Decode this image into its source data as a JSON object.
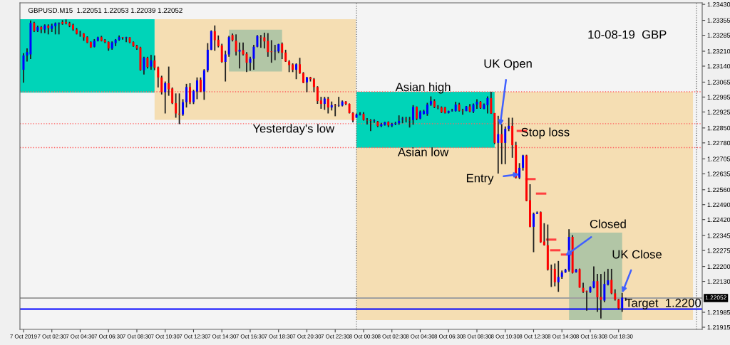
{
  "chart_data": {
    "type": "candlestick",
    "title": "GBPUSD.M15  1.22051 1.22053 1.22039 1.22052",
    "x": [
      "2019-10-07T00:30",
      "2019-10-07T00:45",
      "2019-10-07T01:00",
      "2019-10-07T01:15",
      "2019-10-07T01:30",
      "2019-10-07T01:45",
      "2019-10-07T02:00",
      "2019-10-07T02:15",
      "2019-10-07T02:30",
      "2019-10-07T02:45",
      "2019-10-07T03:00",
      "2019-10-07T03:15",
      "2019-10-07T03:30",
      "2019-10-07T03:45",
      "2019-10-07T04:00",
      "2019-10-07T04:15",
      "2019-10-07T04:30",
      "2019-10-07T04:45",
      "2019-10-07T05:00",
      "2019-10-07T05:15",
      "2019-10-07T05:30",
      "2019-10-07T05:45",
      "2019-10-07T06:00",
      "2019-10-07T06:15",
      "2019-10-07T06:30",
      "2019-10-07T06:45",
      "2019-10-07T07:00",
      "2019-10-07T07:15",
      "2019-10-07T07:30",
      "2019-10-07T07:45",
      "2019-10-07T08:00",
      "2019-10-07T08:15",
      "2019-10-07T08:30",
      "2019-10-07T08:45",
      "2019-10-07T09:00",
      "2019-10-07T09:15",
      "2019-10-07T09:30",
      "2019-10-07T09:45",
      "2019-10-07T10:00",
      "2019-10-07T10:15",
      "2019-10-07T10:30",
      "2019-10-07T10:45",
      "2019-10-07T11:00",
      "2019-10-07T11:15",
      "2019-10-07T11:30",
      "2019-10-07T11:45",
      "2019-10-07T12:00",
      "2019-10-07T12:15",
      "2019-10-07T12:30",
      "2019-10-07T12:45",
      "2019-10-07T13:00",
      "2019-10-07T13:15",
      "2019-10-07T13:30",
      "2019-10-07T13:45",
      "2019-10-07T14:00",
      "2019-10-07T14:15",
      "2019-10-07T14:30",
      "2019-10-07T14:45",
      "2019-10-07T15:00",
      "2019-10-07T15:15",
      "2019-10-07T15:30",
      "2019-10-07T15:45",
      "2019-10-07T16:00",
      "2019-10-07T16:15",
      "2019-10-07T16:30",
      "2019-10-07T16:45",
      "2019-10-07T17:00",
      "2019-10-07T17:15",
      "2019-10-07T17:30",
      "2019-10-07T17:45",
      "2019-10-07T18:00",
      "2019-10-07T18:15",
      "2019-10-07T18:30",
      "2019-10-07T18:45",
      "2019-10-07T19:00",
      "2019-10-07T19:15",
      "2019-10-07T19:30",
      "2019-10-07T19:45",
      "2019-10-07T20:00",
      "2019-10-07T20:15",
      "2019-10-07T20:30",
      "2019-10-07T20:45",
      "2019-10-07T21:00",
      "2019-10-07T21:15",
      "2019-10-07T21:30",
      "2019-10-07T21:45",
      "2019-10-07T22:00",
      "2019-10-07T22:15",
      "2019-10-07T22:30",
      "2019-10-07T22:45",
      "2019-10-07T23:00",
      "2019-10-07T23:15",
      "2019-10-07T23:30",
      "2019-10-07T23:45",
      "2019-10-08T00:00",
      "2019-10-08T00:15",
      "2019-10-08T00:30",
      "2019-10-08T00:45",
      "2019-10-08T01:00",
      "2019-10-08T01:15",
      "2019-10-08T01:30",
      "2019-10-08T01:45",
      "2019-10-08T02:00",
      "2019-10-08T02:15",
      "2019-10-08T02:30",
      "2019-10-08T02:45",
      "2019-10-08T03:00",
      "2019-10-08T03:15",
      "2019-10-08T03:30",
      "2019-10-08T03:45",
      "2019-10-08T04:00",
      "2019-10-08T04:15",
      "2019-10-08T04:30",
      "2019-10-08T04:45",
      "2019-10-08T05:00",
      "2019-10-08T05:15",
      "2019-10-08T05:30",
      "2019-10-08T05:45",
      "2019-10-08T06:00",
      "2019-10-08T06:15",
      "2019-10-08T06:30",
      "2019-10-08T06:45",
      "2019-10-08T07:00",
      "2019-10-08T07:15",
      "2019-10-08T07:30",
      "2019-10-08T07:45",
      "2019-10-08T08:00",
      "2019-10-08T08:15",
      "2019-10-08T08:30",
      "2019-10-08T08:45",
      "2019-10-08T09:00",
      "2019-10-08T09:15",
      "2019-10-08T09:30",
      "2019-10-08T09:45",
      "2019-10-08T10:00",
      "2019-10-08T10:15",
      "2019-10-08T10:30",
      "2019-10-08T10:45",
      "2019-10-08T11:00",
      "2019-10-08T11:15",
      "2019-10-08T11:30",
      "2019-10-08T11:45",
      "2019-10-08T12:00",
      "2019-10-08T12:15",
      "2019-10-08T12:30",
      "2019-10-08T12:45",
      "2019-10-08T13:00",
      "2019-10-08T13:15",
      "2019-10-08T13:30",
      "2019-10-08T13:45",
      "2019-10-08T14:00",
      "2019-10-08T14:15",
      "2019-10-08T14:30",
      "2019-10-08T14:45",
      "2019-10-08T15:00",
      "2019-10-08T15:15",
      "2019-10-08T15:30",
      "2019-10-08T15:45",
      "2019-10-08T16:00",
      "2019-10-08T16:15",
      "2019-10-08T16:30",
      "2019-10-08T16:45",
      "2019-10-08T17:00",
      "2019-10-08T17:15",
      "2019-10-08T17:30",
      "2019-10-08T17:45",
      "2019-10-08T18:00",
      "2019-10-08T18:15",
      "2019-10-08T18:30",
      "2019-10-08T18:45",
      "2019-10-08T19:00"
    ],
    "ohlc": [
      [
        1.23123,
        1.23201,
        1.23062,
        1.2319
      ],
      [
        1.2319,
        1.23223,
        1.23162,
        1.23206
      ],
      [
        1.23195,
        1.23354,
        1.23173,
        1.23343
      ],
      [
        1.23343,
        1.23348,
        1.233,
        1.23306
      ],
      [
        1.23306,
        1.2333,
        1.233,
        1.23323
      ],
      [
        1.23323,
        1.23328,
        1.23295,
        1.23312
      ],
      [
        1.23312,
        1.23336,
        1.23295,
        1.23331
      ],
      [
        1.2333,
        1.23336,
        1.23289,
        1.23319
      ],
      [
        1.23315,
        1.23339,
        1.233,
        1.2333
      ],
      [
        1.23328,
        1.23345,
        1.23289,
        1.23341
      ],
      [
        1.23341,
        1.23345,
        1.23289,
        1.23341
      ],
      [
        1.23347,
        1.23356,
        1.23334,
        1.23339
      ],
      [
        1.23347,
        1.23359,
        1.23336,
        1.23341
      ],
      [
        1.23341,
        1.23348,
        1.23323,
        1.2333
      ],
      [
        1.23334,
        1.23339,
        1.23306,
        1.23312
      ],
      [
        1.23312,
        1.23319,
        1.23289,
        1.23292
      ],
      [
        1.23292,
        1.23306,
        1.23278,
        1.23291
      ],
      [
        1.23293,
        1.23295,
        1.23259,
        1.23275
      ],
      [
        1.23276,
        1.2328,
        1.23248,
        1.23251
      ],
      [
        1.23253,
        1.23256,
        1.23226,
        1.23228
      ],
      [
        1.23231,
        1.23267,
        1.23228,
        1.23259
      ],
      [
        1.23259,
        1.23278,
        1.23256,
        1.23275
      ],
      [
        1.23276,
        1.23282,
        1.23256,
        1.23259
      ],
      [
        1.23262,
        1.23267,
        1.23248,
        1.23253
      ],
      [
        1.23254,
        1.23256,
        1.23212,
        1.23223
      ],
      [
        1.23223,
        1.23256,
        1.23217,
        1.23251
      ],
      [
        1.23248,
        1.23267,
        1.23234,
        1.23264
      ],
      [
        1.23264,
        1.23284,
        1.23259,
        1.23276
      ],
      [
        1.23276,
        1.23276,
        1.23264,
        1.23273
      ],
      [
        1.23273,
        1.23278,
        1.23253,
        1.23276
      ],
      [
        1.23275,
        1.23276,
        1.23248,
        1.23251
      ],
      [
        1.23253,
        1.23256,
        1.23231,
        1.23234
      ],
      [
        1.23236,
        1.2324,
        1.23217,
        1.23223
      ],
      [
        1.23228,
        1.23231,
        1.23118,
        1.23121
      ],
      [
        1.23121,
        1.23184,
        1.23101,
        1.23179
      ],
      [
        1.23179,
        1.23184,
        1.23129,
        1.23136
      ],
      [
        1.23138,
        1.23193,
        1.23123,
        1.23167
      ],
      [
        1.23167,
        1.2319,
        1.23121,
        1.23132
      ],
      [
        1.23134,
        1.23138,
        1.2304,
        1.23087
      ],
      [
        1.23087,
        1.23095,
        1.23007,
        1.23018
      ],
      [
        1.23018,
        1.23068,
        1.22918,
        1.2306
      ],
      [
        1.2306,
        1.23138,
        1.23001,
        1.23031
      ],
      [
        1.23035,
        1.2304,
        1.22962,
        1.22966
      ],
      [
        1.22966,
        1.23012,
        1.22898,
        1.22918
      ],
      [
        1.22917,
        1.23012,
        1.22868,
        1.22913
      ],
      [
        1.22913,
        1.22985,
        1.22907,
        1.22971
      ],
      [
        1.22971,
        1.23057,
        1.22946,
        1.23042
      ],
      [
        1.23042,
        1.2306,
        1.22962,
        1.22971
      ],
      [
        1.22971,
        1.23029,
        1.22962,
        1.23023
      ],
      [
        1.23021,
        1.23087,
        1.22985,
        1.23073
      ],
      [
        1.23076,
        1.23087,
        1.23018,
        1.23021
      ],
      [
        1.23021,
        1.23126,
        1.22982,
        1.2312
      ],
      [
        1.2312,
        1.23248,
        1.23112,
        1.23217
      ],
      [
        1.23217,
        1.23308,
        1.23215,
        1.23304
      ],
      [
        1.23304,
        1.23331,
        1.23212,
        1.23262
      ],
      [
        1.23264,
        1.23284,
        1.23228,
        1.23234
      ],
      [
        1.23237,
        1.23245,
        1.23156,
        1.2316
      ],
      [
        1.2316,
        1.23212,
        1.23068,
        1.23195
      ],
      [
        1.23195,
        1.23282,
        1.23184,
        1.23276
      ],
      [
        1.23286,
        1.23293,
        1.23256,
        1.23262
      ],
      [
        1.23259,
        1.23289,
        1.2319,
        1.23208
      ],
      [
        1.23208,
        1.23251,
        1.23129,
        1.23217
      ],
      [
        1.23215,
        1.23251,
        1.2319,
        1.23195
      ],
      [
        1.23198,
        1.23206,
        1.23112,
        1.23156
      ],
      [
        1.23156,
        1.23184,
        1.23118,
        1.23175
      ],
      [
        1.23175,
        1.2324,
        1.23123,
        1.23231
      ],
      [
        1.23231,
        1.23286,
        1.23228,
        1.23282
      ],
      [
        1.23277,
        1.23286,
        1.23226,
        1.23275
      ],
      [
        1.23275,
        1.23297,
        1.23223,
        1.23256
      ],
      [
        1.23258,
        1.23295,
        1.23184,
        1.23206
      ],
      [
        1.23209,
        1.23262,
        1.23156,
        1.23206
      ],
      [
        1.23209,
        1.2324,
        1.23168,
        1.23212
      ],
      [
        1.23209,
        1.23245,
        1.23201,
        1.23243
      ],
      [
        1.23245,
        1.23251,
        1.23173,
        1.23203
      ],
      [
        1.23204,
        1.23217,
        1.2316,
        1.23162
      ],
      [
        1.23162,
        1.23168,
        1.23112,
        1.23145
      ],
      [
        1.23148,
        1.23153,
        1.23112,
        1.23123
      ],
      [
        1.23123,
        1.23153,
        1.23079,
        1.23149
      ],
      [
        1.23149,
        1.23179,
        1.23104,
        1.23107
      ],
      [
        1.23107,
        1.23112,
        1.2306,
        1.23062
      ],
      [
        1.23064,
        1.2309,
        1.23018,
        1.23087
      ],
      [
        1.23087,
        1.2309,
        1.23068,
        1.23079
      ],
      [
        1.23079,
        1.23084,
        1.23018,
        1.23042
      ],
      [
        1.23042,
        1.23046,
        1.22963,
        1.22976
      ],
      [
        1.22979,
        1.22996,
        1.2294,
        1.22963
      ],
      [
        1.22963,
        1.22996,
        1.22935,
        1.22988
      ],
      [
        1.22987,
        1.22996,
        1.22918,
        1.22946
      ],
      [
        1.22946,
        1.22974,
        1.22932,
        1.22957
      ],
      [
        1.22957,
        1.22963,
        1.22905,
        1.22955
      ],
      [
        1.22955,
        1.22996,
        1.22949,
        1.22957
      ],
      [
        1.22955,
        1.22979,
        1.22951,
        1.22974
      ],
      [
        1.22974,
        1.22976,
        1.22957,
        1.22963
      ],
      [
        1.22963,
        1.22965,
        1.22918,
        1.2292
      ],
      [
        1.2292,
        1.22924,
        1.22876,
        1.22885
      ],
      [
        1.22898,
        1.22918,
        1.22898,
        1.22913
      ],
      [
        1.22913,
        1.22924,
        1.22909,
        1.22916
      ],
      [
        1.22916,
        1.22924,
        1.22885,
        1.22887
      ],
      [
        1.22887,
        1.22896,
        1.22866,
        1.22885
      ],
      [
        1.22885,
        1.22891,
        1.22835,
        1.22883
      ],
      [
        1.22883,
        1.22891,
        1.22874,
        1.22885
      ],
      [
        1.22879,
        1.22883,
        1.22854,
        1.22859
      ],
      [
        1.22859,
        1.22874,
        1.22854,
        1.22867
      ],
      [
        1.22865,
        1.22879,
        1.22861,
        1.22876
      ],
      [
        1.22878,
        1.22881,
        1.22854,
        1.22862
      ],
      [
        1.22861,
        1.22874,
        1.22854,
        1.22869
      ],
      [
        1.22869,
        1.22879,
        1.22863,
        1.22872
      ],
      [
        1.22872,
        1.22909,
        1.22865,
        1.22883
      ],
      [
        1.22891,
        1.22902,
        1.22872,
        1.22894
      ],
      [
        1.22894,
        1.22902,
        1.22876,
        1.22891
      ],
      [
        1.22887,
        1.22902,
        1.22852,
        1.22885
      ],
      [
        1.22887,
        1.22957,
        1.22865,
        1.22949
      ],
      [
        1.22949,
        1.22951,
        1.22887,
        1.22894
      ],
      [
        1.22894,
        1.22932,
        1.22891,
        1.22927
      ],
      [
        1.22916,
        1.22935,
        1.22913,
        1.22929
      ],
      [
        1.22916,
        1.22968,
        1.22907,
        1.2296
      ],
      [
        1.2296,
        1.22998,
        1.22954,
        1.22976
      ],
      [
        1.22976,
        1.22985,
        1.22943,
        1.22949
      ],
      [
        1.22949,
        1.22957,
        1.22938,
        1.22946
      ],
      [
        1.22946,
        1.22951,
        1.2292,
        1.22924
      ],
      [
        1.22946,
        1.22949,
        1.22918,
        1.22921
      ],
      [
        1.22921,
        1.22931,
        1.22918,
        1.22929
      ],
      [
        1.22929,
        1.2294,
        1.22927,
        1.22931
      ],
      [
        1.22929,
        1.22973,
        1.22927,
        1.2296
      ],
      [
        1.2296,
        1.22968,
        1.22927,
        1.22931
      ],
      [
        1.22931,
        1.2294,
        1.22912,
        1.22929
      ],
      [
        1.22929,
        1.22953,
        1.22929,
        1.22951
      ],
      [
        1.22951,
        1.22962,
        1.22924,
        1.22927
      ],
      [
        1.22927,
        1.22965,
        1.2292,
        1.2296
      ],
      [
        1.2296,
        1.22985,
        1.2294,
        1.22973
      ],
      [
        1.22973,
        1.22976,
        1.2294,
        1.22944
      ],
      [
        1.2294,
        1.22965,
        1.22938,
        1.2296
      ],
      [
        1.22957,
        1.22998,
        1.22918,
        1.2299
      ],
      [
        1.2299,
        1.2302,
        1.22916,
        1.22918
      ],
      [
        1.2292,
        1.2292,
        1.22774,
        1.2278
      ],
      [
        1.2278,
        1.22907,
        1.22636,
        1.22821
      ],
      [
        1.22821,
        1.22868,
        1.2268,
        1.2278
      ],
      [
        1.2278,
        1.22857,
        1.2268,
        1.22846
      ],
      [
        1.22846,
        1.22898,
        1.22835,
        1.2286
      ],
      [
        1.2286,
        1.22898,
        1.2271,
        1.22769
      ],
      [
        1.22769,
        1.22785,
        1.22613,
        1.22617
      ],
      [
        1.22617,
        1.22685,
        1.2261,
        1.22663
      ],
      [
        1.22663,
        1.22724,
        1.2265,
        1.22721
      ],
      [
        1.22721,
        1.22724,
        1.22506,
        1.22508
      ],
      [
        1.22511,
        1.22586,
        1.22384,
        1.22386
      ],
      [
        1.22386,
        1.22453,
        1.22267,
        1.22447
      ],
      [
        1.22447,
        1.22458,
        1.22447,
        1.22453
      ],
      [
        1.22455,
        1.22458,
        1.22311,
        1.22314
      ],
      [
        1.22317,
        1.22403,
        1.22298,
        1.223
      ],
      [
        1.223,
        1.22397,
        1.22181,
        1.22185
      ],
      [
        1.22189,
        1.22209,
        1.22104,
        1.22187
      ],
      [
        1.22189,
        1.22214,
        1.22107,
        1.22126
      ],
      [
        1.22126,
        1.22226,
        1.22081,
        1.22151
      ],
      [
        1.22151,
        1.22181,
        1.22142,
        1.22172
      ],
      [
        1.22172,
        1.22189,
        1.2217,
        1.22185
      ],
      [
        1.22184,
        1.22375,
        1.22176,
        1.22339
      ],
      [
        1.22339,
        1.22347,
        1.22167,
        1.2217
      ],
      [
        1.22173,
        1.22189,
        1.22171,
        1.22185
      ],
      [
        1.22187,
        1.2219,
        1.221,
        1.22101
      ],
      [
        1.221,
        1.22124,
        1.22076,
        1.22081
      ],
      [
        1.22084,
        1.22087,
        1.21993,
        1.22081
      ],
      [
        1.22079,
        1.22107,
        1.22076,
        1.22104
      ],
      [
        1.22101,
        1.222,
        1.22098,
        1.22131
      ],
      [
        1.22131,
        1.22165,
        1.21987,
        1.22056
      ],
      [
        1.22057,
        1.22165,
        1.21956,
        1.22043
      ],
      [
        1.2204,
        1.22176,
        1.22032,
        1.22118
      ],
      [
        1.22115,
        1.22189,
        1.22111,
        1.22135
      ],
      [
        1.22137,
        1.22189,
        1.2207,
        1.22074
      ],
      [
        1.22074,
        1.22093,
        1.2204,
        1.22045
      ],
      [
        1.22045,
        1.22048,
        1.21998,
        1.22004
      ],
      [
        1.22004,
        1.22076,
        1.21987,
        1.22054
      ],
      [
        1.22051,
        1.22053,
        1.22039,
        1.22052
      ]
    ],
    "colors": [
      "#0000ff",
      "#0000ff",
      "#0000ff",
      "#ff0000",
      "#0000ff",
      "#ff0000",
      "#0000ff",
      "#ff0000",
      "#0000ff",
      "#0000ff",
      "#0000ff",
      "#ff0000",
      "#ff0000",
      "#ff0000",
      "#ff0000",
      "#ff0000",
      "#ff0000",
      "#ff0000",
      "#ff0000",
      "#ff0000",
      "#0000ff",
      "#0000ff",
      "#ff0000",
      "#ff0000",
      "#ff0000",
      "#0000ff",
      "#0000ff",
      "#0000ff",
      "#ff0000",
      "#0000ff",
      "#ff0000",
      "#ff0000",
      "#ff0000",
      "#ff0000",
      "#0000ff",
      "#ff0000",
      "#0000ff",
      "#ff0000",
      "#ff0000",
      "#ff0000",
      "#0000ff",
      "#ff0000",
      "#ff0000",
      "#ff0000",
      "#ff0000",
      "#0000ff",
      "#0000ff",
      "#ff0000",
      "#0000ff",
      "#0000ff",
      "#ff0000",
      "#0000ff",
      "#0000ff",
      "#0000ff",
      "#ff0000",
      "#ff0000",
      "#ff0000",
      "#0000ff",
      "#0000ff",
      "#ff0000",
      "#ff0000",
      "#0000ff",
      "#ff0000",
      "#ff0000",
      "#0000ff",
      "#0000ff",
      "#0000ff",
      "#ff0000",
      "#ff0000",
      "#ff0000",
      "#ff0000",
      "#0000ff",
      "#0000ff",
      "#ff0000",
      "#ff0000",
      "#ff0000",
      "#ff0000",
      "#0000ff",
      "#ff0000",
      "#ff0000",
      "#0000ff",
      "#ff0000",
      "#ff0000",
      "#ff0000",
      "#ff0000",
      "#0000ff",
      "#ff0000",
      "#0000ff",
      "#ff0000",
      "#0000ff",
      "#0000ff",
      "#ff0000",
      "#ff0000",
      "#ff0000",
      "#0000ff",
      "#0000ff",
      "#ff0000",
      "#ff0000",
      "#ff0000",
      "#0000ff",
      "#ff0000",
      "#0000ff",
      "#0000ff",
      "#ff0000",
      "#0000ff",
      "#0000ff",
      "#0000ff",
      "#0000ff",
      "#ff0000",
      "#ff0000",
      "#0000ff",
      "#ff0000",
      "#0000ff",
      "#0000ff",
      "#0000ff",
      "#0000ff",
      "#ff0000",
      "#ff0000",
      "#ff0000",
      "#ff0000",
      "#0000ff",
      "#0000ff",
      "#0000ff",
      "#ff0000",
      "#ff0000",
      "#0000ff",
      "#ff0000",
      "#0000ff",
      "#0000ff",
      "#ff0000",
      "#0000ff",
      "#0000ff",
      "#ff0000",
      "#ff0000",
      "#0000ff",
      "#ff0000",
      "#0000ff",
      "#0000ff",
      "#ff0000",
      "#ff0000",
      "#0000ff",
      "#0000ff",
      "#ff0000",
      "#ff0000",
      "#0000ff",
      "#0000ff",
      "#ff0000",
      "#ff0000",
      "#ff0000",
      "#ff0000",
      "#ff0000",
      "#0000ff",
      "#0000ff",
      "#0000ff",
      "#0000ff",
      "#ff0000",
      "#0000ff",
      "#ff0000",
      "#ff0000",
      "#ff0000",
      "#0000ff",
      "#0000ff",
      "#ff0000",
      "#ff0000",
      "#0000ff",
      "#0000ff",
      "#ff0000",
      "#ff0000",
      "#ff0000",
      "#0000ff",
      "#0000ff"
    ],
    "ref_lines": [
      {
        "axis": "y",
        "value": 1.2302,
        "color": "#ff6060",
        "line_style": "dotted"
      },
      {
        "axis": "y",
        "value": 1.2287,
        "color": "#ff6060",
        "line_style": "dotted"
      },
      {
        "axis": "y",
        "value": 1.22758,
        "color": "#ff6060",
        "line_style": "dotted"
      },
      {
        "axis": "y",
        "value": 1.22,
        "color": "#0000ff",
        "line_style": "solid"
      },
      {
        "axis": "y",
        "value": 1.22052,
        "label": "1.22052",
        "color": "#a0a0a0",
        "line_style": "solid"
      },
      {
        "axis": "x",
        "value": "2019-10-08",
        "color": "#606060",
        "line_style": "dotted"
      },
      {
        "axis": "x",
        "value": "2019-10-09",
        "color": "#606060",
        "line_style": "dotted"
      }
    ],
    "annotations": [
      "10-08-19  GBP",
      "Asian high",
      "Asian low",
      "Yesterday's low",
      "Stop loss",
      "Target  1.2200",
      {
        "text": "UK Open",
        "x": "2019-10-08T10:08",
        "y": 1.2286
      },
      {
        "text": "Entry",
        "x": "2019-10-08T11:30",
        "y": 1.22633
      },
      {
        "text": "Closed",
        "x": "2019-10-08T14:45",
        "y": 1.22251
      },
      {
        "text": "UK Close",
        "x": "2019-10-08T18:45",
        "y": 1.22076
      }
    ],
    "xlim": [
      "2019-10-07T00:15",
      "2019-10-09T00:24"
    ],
    "ylim": [
      1.21905,
      1.23437
    ],
    "xticks": [
      {
        "value": "2019-10-07T00:30",
        "label": "7 Oct 2019"
      },
      {
        "value": "2019-10-07T02:30",
        "label": "7 Oct 02:30"
      },
      {
        "value": "2019-10-07T04:30",
        "label": "7 Oct 04:30"
      },
      {
        "value": "2019-10-07T06:30",
        "label": "7 Oct 06:30"
      },
      {
        "value": "2019-10-07T08:30",
        "label": "7 Oct 08:30"
      },
      {
        "value": "2019-10-07T10:30",
        "label": "7 Oct 10:30"
      },
      {
        "value": "2019-10-07T12:30",
        "label": "7 Oct 12:30"
      },
      {
        "value": "2019-10-07T14:30",
        "label": "7 Oct 14:30"
      },
      {
        "value": "2019-10-07T16:30",
        "label": "7 Oct 16:30"
      },
      {
        "value": "2019-10-07T18:30",
        "label": "7 Oct 18:30"
      },
      {
        "value": "2019-10-07T20:30",
        "label": "7 Oct 20:30"
      },
      {
        "value": "2019-10-07T22:30",
        "label": "7 Oct 22:30"
      },
      {
        "value": "2019-10-08T00:30",
        "label": "8 Oct 00:30"
      },
      {
        "value": "2019-10-08T02:30",
        "label": "8 Oct 02:30"
      },
      {
        "value": "2019-10-08T04:30",
        "label": "8 Oct 04:30"
      },
      {
        "value": "2019-10-08T06:30",
        "label": "8 Oct 06:30"
      },
      {
        "value": "2019-10-08T08:30",
        "label": "8 Oct 08:30"
      },
      {
        "value": "2019-10-08T10:30",
        "label": "8 Oct 10:30"
      },
      {
        "value": "2019-10-08T12:30",
        "label": "8 Oct 12:30"
      },
      {
        "value": "2019-10-08T14:30",
        "label": "8 Oct 14:30"
      },
      {
        "value": "2019-10-08T16:30",
        "label": "8 Oct 16:30"
      },
      {
        "value": "2019-10-08T18:30",
        "label": "8 Oct 18:30"
      }
    ],
    "yticks": [
      {
        "value": 1.2343,
        "label": "1.23430"
      },
      {
        "value": 1.23355,
        "label": "1.23355"
      },
      {
        "value": 1.23285,
        "label": "1.23285"
      },
      {
        "value": 1.2321,
        "label": "1.23210"
      },
      {
        "value": 1.2314,
        "label": "1.23140"
      },
      {
        "value": 1.23065,
        "label": "1.23065"
      },
      {
        "value": 1.22995,
        "label": "1.22995"
      },
      {
        "value": 1.22925,
        "label": "1.22925"
      },
      {
        "value": 1.2285,
        "label": "1.22850"
      },
      {
        "value": 1.2278,
        "label": "1.22780"
      },
      {
        "value": 1.22705,
        "label": "1.22705"
      },
      {
        "value": 1.22635,
        "label": "1.22635"
      },
      {
        "value": 1.2256,
        "label": "1.22560"
      },
      {
        "value": 1.2249,
        "label": "1.22490"
      },
      {
        "value": 1.2242,
        "label": "1.22420"
      },
      {
        "value": 1.22345,
        "label": "1.22345"
      },
      {
        "value": 1.22275,
        "label": "1.22275"
      },
      {
        "value": 1.222,
        "label": "1.22200"
      },
      {
        "value": 1.2213,
        "label": "1.22130"
      },
      {
        "value": 1.21985,
        "label": "1.21985"
      },
      {
        "value": 1.21915,
        "label": "1.21915"
      }
    ],
    "grid": false,
    "legend": false
  }
}
